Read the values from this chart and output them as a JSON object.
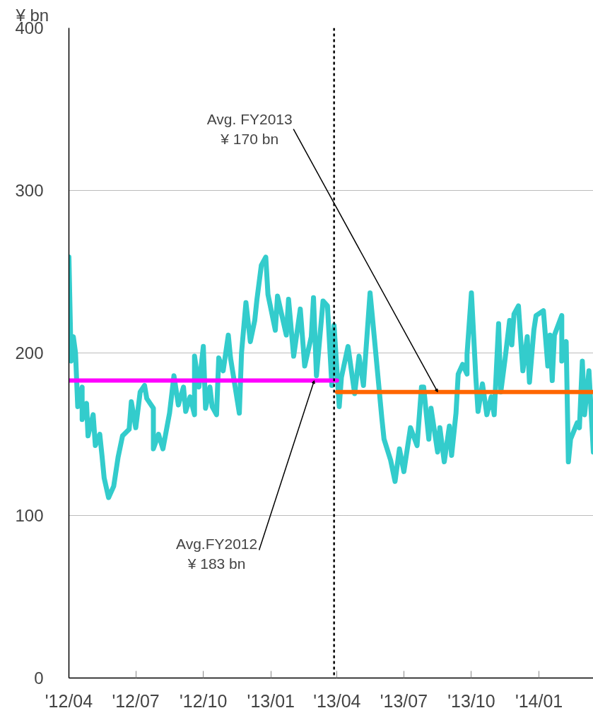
{
  "chart_data": {
    "type": "line",
    "ylabel": "¥ bn",
    "xlim": [
      "2012-04-01",
      "2014-03-16"
    ],
    "ylim": [
      0,
      400
    ],
    "xticks": [
      {
        "value": "2012-04-01",
        "label": "'12/04"
      },
      {
        "value": "2012-07-01",
        "label": "'12/07"
      },
      {
        "value": "2012-10-01",
        "label": "'12/10"
      },
      {
        "value": "2013-01-01",
        "label": "'13/01"
      },
      {
        "value": "2013-04-01",
        "label": "'13/04"
      },
      {
        "value": "2013-07-01",
        "label": "'13/07"
      },
      {
        "value": "2013-10-01",
        "label": "'13/10"
      },
      {
        "value": "2014-01-01",
        "label": "'14/01"
      }
    ],
    "yticks": [
      0,
      100,
      200,
      300,
      400
    ],
    "grid": "y",
    "marker": "none",
    "series": [
      {
        "color": "#33cccc",
        "x": [
          "2012-04-01",
          "2012-04-04",
          "2012-04-07",
          "2012-04-10",
          "2012-04-13",
          "2012-04-19",
          "2012-04-19",
          "2012-04-25",
          "2012-04-27",
          "2012-05-04",
          "2012-05-07",
          "2012-05-13",
          "2012-05-16",
          "2012-05-19",
          "2012-05-25",
          "2012-06-01",
          "2012-06-07",
          "2012-06-13",
          "2012-06-22",
          "2012-06-25",
          "2012-07-01",
          "2012-07-07",
          "2012-07-13",
          "2012-07-16",
          "2012-07-25",
          "2012-07-25",
          "2012-08-01",
          "2012-08-07",
          "2012-08-16",
          "2012-08-22",
          "2012-08-28",
          "2012-09-04",
          "2012-09-07",
          "2012-09-13",
          "2012-09-19",
          "2012-09-19",
          "2012-09-25",
          "2012-10-01",
          "2012-10-04",
          "2012-10-10",
          "2012-10-13",
          "2012-10-19",
          "2012-10-22",
          "2012-10-28",
          "2012-11-04",
          "2012-11-07",
          "2012-11-19",
          "2012-11-22",
          "2012-11-28",
          "2012-12-04",
          "2012-12-10",
          "2012-12-13",
          "2012-12-19",
          "2012-12-25",
          "2012-12-28",
          "2013-01-07",
          "2013-01-10",
          "2013-01-22",
          "2013-01-25",
          "2013-02-01",
          "2013-02-10",
          "2013-02-16",
          "2013-02-25",
          "2013-02-28",
          "2013-03-04",
          "2013-03-13",
          "2013-03-19",
          "2013-03-25",
          "2013-03-28",
          "2013-04-04",
          "2013-04-07",
          "2013-04-16",
          "2013-04-25",
          "2013-05-01",
          "2013-05-07",
          "2013-05-16",
          "2013-05-19",
          "2013-06-01",
          "2013-06-04",
          "2013-06-13",
          "2013-06-19",
          "2013-06-25",
          "2013-07-01",
          "2013-07-10",
          "2013-07-19",
          "2013-07-25",
          "2013-07-28",
          "2013-08-04",
          "2013-08-07",
          "2013-08-16",
          "2013-08-19",
          "2013-08-25",
          "2013-09-01",
          "2013-09-04",
          "2013-09-10",
          "2013-09-13",
          "2013-09-19",
          "2013-09-25",
          "2013-09-25",
          "2013-10-01",
          "2013-10-07",
          "2013-10-10",
          "2013-10-16",
          "2013-10-22",
          "2013-10-28",
          "2013-11-01",
          "2013-11-07",
          "2013-11-10",
          "2013-11-16",
          "2013-11-22",
          "2013-11-25",
          "2013-11-28",
          "2013-12-04",
          "2013-12-10",
          "2013-12-16",
          "2013-12-19",
          "2013-12-25",
          "2013-12-28",
          "2014-01-07",
          "2014-01-13",
          "2014-01-16",
          "2014-01-19",
          "2014-01-22",
          "2014-02-01",
          "2014-02-01",
          "2014-02-07",
          "2014-02-10",
          "2014-02-13",
          "2014-02-22",
          "2014-02-25",
          "2014-03-01",
          "2014-03-04",
          "2014-03-10",
          "2014-03-16"
        ],
        "values": [
          259,
          195,
          210,
          200,
          167,
          179,
          159,
          169,
          149,
          162,
          143,
          150,
          137,
          123,
          111,
          118,
          136,
          149,
          153,
          170,
          154,
          176,
          180,
          172,
          166,
          141,
          150,
          141,
          163,
          186,
          168,
          179,
          164,
          173,
          162,
          198,
          179,
          204,
          166,
          179,
          167,
          162,
          197,
          189,
          211,
          197,
          163,
          200,
          231,
          207,
          220,
          233,
          254,
          259,
          236,
          214,
          235,
          211,
          233,
          198,
          227,
          192,
          210,
          234,
          186,
          232,
          229,
          180,
          217,
          167,
          185,
          204,
          175,
          198,
          180,
          237,
          223,
          160,
          147,
          134,
          121,
          141,
          127,
          154,
          143,
          179,
          179,
          147,
          166,
          139,
          154,
          133,
          155,
          137,
          163,
          187,
          193,
          187,
          199,
          237,
          185,
          164,
          181,
          162,
          173,
          162,
          218,
          176,
          197,
          220,
          205,
          224,
          229,
          189,
          210,
          182,
          214,
          223,
          226,
          192,
          211,
          183,
          211,
          223,
          195,
          207,
          133,
          147,
          157,
          154,
          195,
          162,
          189,
          139
        ]
      },
      {
        "color": "#ff00ff",
        "x": [
          "2012-04-01",
          "2013-04-01"
        ],
        "values": [
          183,
          183
        ]
      },
      {
        "color": "#ff6600",
        "x": [
          "2013-04-01",
          "2014-03-16"
        ],
        "values": [
          176,
          176
        ]
      }
    ],
    "ref_lines": [
      {
        "axis": "x",
        "value": "2013-03-28",
        "color": "#000000",
        "line_style": "dashed"
      }
    ],
    "annotations": [
      {
        "text": "Avg.FY2012\n¥ 183 bn",
        "x": "2013-03-01",
        "y": 183
      },
      {
        "text": "Avg. FY2013\n¥ 170 bn",
        "x": "2013-08-16",
        "y": 176
      }
    ]
  }
}
